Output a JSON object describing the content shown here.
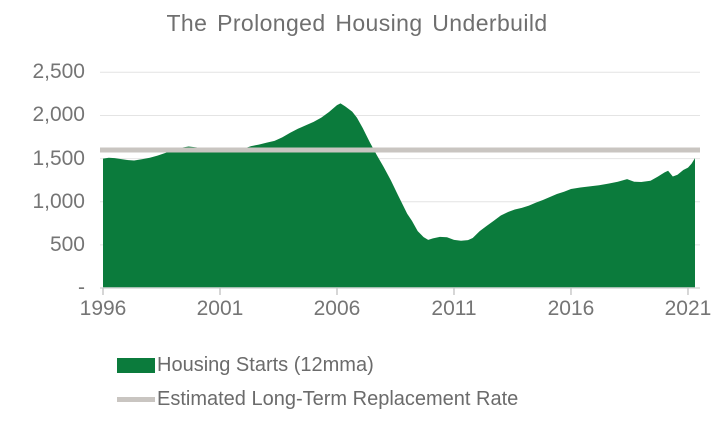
{
  "chart_data": {
    "type": "area",
    "title": "The Prolonged Housing Underbuild",
    "xlabel": "",
    "ylabel": "",
    "xlim": [
      1996,
      2021.3
    ],
    "ylim": [
      0,
      2500
    ],
    "grid": "horizontal",
    "legend_position": "bottom-left",
    "x_ticks": [
      "1996",
      "2001",
      "2006",
      "2011",
      "2016",
      "2021"
    ],
    "x_tick_values": [
      1996,
      2001,
      2006,
      2011,
      2016,
      2021
    ],
    "y_ticks": [
      {
        "value": 2500,
        "label": "2,500"
      },
      {
        "value": 2000,
        "label": "2,000"
      },
      {
        "value": 1500,
        "label": "1,500"
      },
      {
        "value": 1000,
        "label": "1,000"
      },
      {
        "value": 500,
        "label": "500"
      },
      {
        "value": 0,
        "label": "-"
      }
    ],
    "colors": {
      "area_green": "#0b7b3c",
      "replacement_line_gray": "#c9c5c1",
      "gridline": "#e4e4e4",
      "axis_line": "#d8d8d8",
      "tick_mark": "#c9c9c9"
    },
    "series": [
      {
        "name": "Housing Starts (12mma)",
        "type": "area",
        "color": "#0b7b3c",
        "points": [
          [
            1996.0,
            1500
          ],
          [
            1996.25,
            1510
          ],
          [
            1996.5,
            1505
          ],
          [
            1996.75,
            1495
          ],
          [
            1997.0,
            1485
          ],
          [
            1997.33,
            1478
          ],
          [
            1997.66,
            1492
          ],
          [
            1998.0,
            1510
          ],
          [
            1998.33,
            1535
          ],
          [
            1998.66,
            1565
          ],
          [
            1999.0,
            1600
          ],
          [
            1999.33,
            1625
          ],
          [
            1999.66,
            1640
          ],
          [
            2000.0,
            1630
          ],
          [
            2000.33,
            1605
          ],
          [
            2000.66,
            1590
          ],
          [
            2001.0,
            1582
          ],
          [
            2001.33,
            1585
          ],
          [
            2001.66,
            1592
          ],
          [
            2002.0,
            1615
          ],
          [
            2002.33,
            1645
          ],
          [
            2002.66,
            1662
          ],
          [
            2003.0,
            1685
          ],
          [
            2003.33,
            1705
          ],
          [
            2003.66,
            1745
          ],
          [
            2004.0,
            1800
          ],
          [
            2004.33,
            1845
          ],
          [
            2004.66,
            1885
          ],
          [
            2005.0,
            1925
          ],
          [
            2005.33,
            1975
          ],
          [
            2005.66,
            2040
          ],
          [
            2006.0,
            2120
          ],
          [
            2006.15,
            2140
          ],
          [
            2006.35,
            2105
          ],
          [
            2006.65,
            2045
          ],
          [
            2006.85,
            1975
          ],
          [
            2007.1,
            1855
          ],
          [
            2007.4,
            1690
          ],
          [
            2007.7,
            1540
          ],
          [
            2008.0,
            1400
          ],
          [
            2008.3,
            1250
          ],
          [
            2008.6,
            1080
          ],
          [
            2009.0,
            860
          ],
          [
            2009.2,
            780
          ],
          [
            2009.45,
            660
          ],
          [
            2009.7,
            590
          ],
          [
            2009.9,
            558
          ],
          [
            2010.1,
            575
          ],
          [
            2010.4,
            592
          ],
          [
            2010.7,
            588
          ],
          [
            2011.0,
            558
          ],
          [
            2011.3,
            548
          ],
          [
            2011.6,
            555
          ],
          [
            2011.8,
            580
          ],
          [
            2012.1,
            660
          ],
          [
            2012.4,
            720
          ],
          [
            2012.7,
            780
          ],
          [
            2013.0,
            840
          ],
          [
            2013.3,
            880
          ],
          [
            2013.6,
            910
          ],
          [
            2013.9,
            928
          ],
          [
            2014.2,
            955
          ],
          [
            2014.5,
            990
          ],
          [
            2014.8,
            1020
          ],
          [
            2015.1,
            1055
          ],
          [
            2015.4,
            1090
          ],
          [
            2015.7,
            1115
          ],
          [
            2016.0,
            1148
          ],
          [
            2016.4,
            1165
          ],
          [
            2016.8,
            1178
          ],
          [
            2017.2,
            1192
          ],
          [
            2017.6,
            1210
          ],
          [
            2018.0,
            1232
          ],
          [
            2018.4,
            1262
          ],
          [
            2018.7,
            1232
          ],
          [
            2019.0,
            1228
          ],
          [
            2019.4,
            1242
          ],
          [
            2019.7,
            1290
          ],
          [
            2020.0,
            1340
          ],
          [
            2020.15,
            1358
          ],
          [
            2020.35,
            1292
          ],
          [
            2020.55,
            1312
          ],
          [
            2020.8,
            1368
          ],
          [
            2021.0,
            1395
          ],
          [
            2021.15,
            1440
          ],
          [
            2021.3,
            1505
          ]
        ]
      },
      {
        "name": "Estimated Long-Term Replacement Rate",
        "type": "line",
        "color": "#c9c5c1",
        "value": 1600
      }
    ]
  }
}
